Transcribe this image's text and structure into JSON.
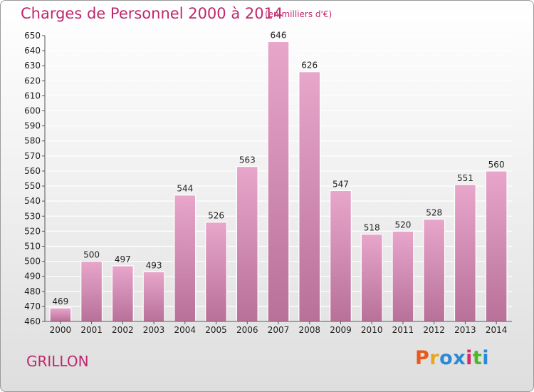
{
  "header": {
    "title": "Charges de Personnel 2000 à 2014",
    "subtitle": "(en milliers d'€)"
  },
  "footer": {
    "commune": "GRILLON",
    "logo": "Proxiti"
  },
  "colors": {
    "title": "#c0276c",
    "bar_top": "#e8a6cb",
    "bar_bottom": "#b87199",
    "grid": "#ffffff",
    "logo": [
      "#e85a1a",
      "#e8a61a",
      "#2a8ad6",
      "#2a8ad6",
      "#d62a6a",
      "#4ab82a",
      "#2a8ad6"
    ]
  },
  "chart_data": {
    "type": "bar",
    "title": "Charges de Personnel 2000 à 2014",
    "subtitle": "(en milliers d'€)",
    "categories": [
      "2000",
      "2001",
      "2002",
      "2003",
      "2004",
      "2005",
      "2006",
      "2007",
      "2008",
      "2009",
      "2010",
      "2011",
      "2012",
      "2013",
      "2014"
    ],
    "values": [
      469,
      500,
      497,
      493,
      544,
      526,
      563,
      646,
      626,
      547,
      518,
      520,
      528,
      551,
      560
    ],
    "ylim": [
      460,
      650
    ],
    "ytick_step": 10,
    "grid": true,
    "xlabel": "",
    "ylabel": ""
  }
}
